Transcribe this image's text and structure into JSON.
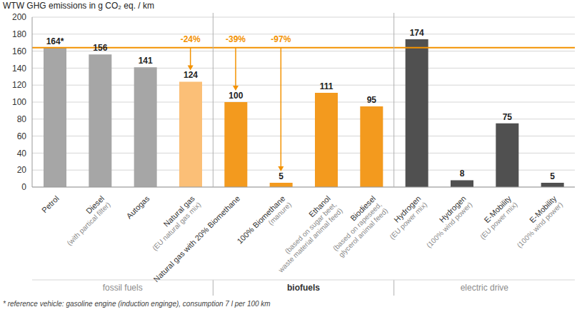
{
  "chart_data": {
    "type": "bar",
    "title": "WTW GHG emissions in g CO₂ eq. / km",
    "categories": [
      "Petrol",
      "Diesel (with partical filter)",
      "Autogas",
      "Natural gas (EU natural gas mix)",
      "Natural gas with 20% Biomethane",
      "100% Biomethane (manure)",
      "Ethanol (based on sugar beet, waste material animal feed)",
      "Biodiesel (based on rapeseed, glycerol animal feed)",
      "Hydrogen (EU power mix)",
      "Hydrogen (100% wind power)",
      "E-Mobility (EU power mix)",
      "E-Mobility (100% wind power)"
    ],
    "values": [
      164,
      156,
      141,
      124,
      100,
      5,
      111,
      95,
      174,
      8,
      75,
      5
    ],
    "value_labels": [
      "164*",
      "156",
      "141",
      "124",
      "100",
      "5",
      "111",
      "95",
      "174",
      "8",
      "75",
      "5"
    ],
    "colors": [
      "#a6a6a6",
      "#a6a6a6",
      "#a6a6a6",
      "#fbbf77",
      "#f39a1e",
      "#f39a1e",
      "#f39a1e",
      "#f39a1e",
      "#505050",
      "#505050",
      "#505050",
      "#505050"
    ],
    "ylim": [
      0,
      200
    ],
    "yticks": [
      0,
      20,
      40,
      60,
      80,
      100,
      120,
      140,
      160,
      180,
      200
    ],
    "grid": true,
    "data_labels": true,
    "reference_line": 164,
    "annotations": [
      {
        "text": "-24%",
        "category": "Natural gas (EU natural gas mix)"
      },
      {
        "text": "-39%",
        "category": "Natural gas with 20% Biomethane"
      },
      {
        "text": "-97%",
        "category": "100% Biomethane (manure)"
      }
    ],
    "groups": [
      {
        "label": "fossil fuels",
        "start": 0,
        "end": 3
      },
      {
        "label": "biofuels",
        "start": 4,
        "end": 7
      },
      {
        "label": "electric drive",
        "start": 8,
        "end": 11
      }
    ],
    "footnote": "* reference vehicle: gasoline engine (induction enginge), consumption 7 l per 100 km"
  }
}
